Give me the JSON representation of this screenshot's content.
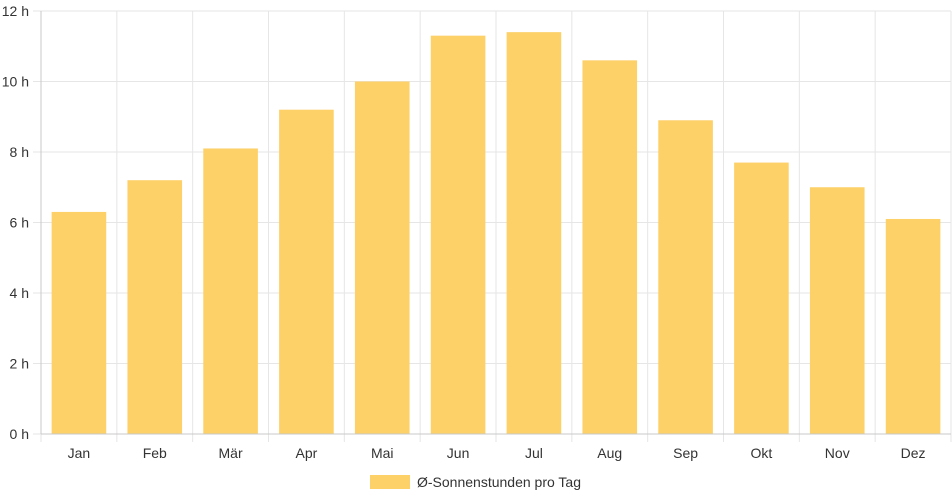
{
  "chart_data": {
    "type": "bar",
    "categories": [
      "Jan",
      "Feb",
      "Mär",
      "Apr",
      "Mai",
      "Jun",
      "Jul",
      "Aug",
      "Sep",
      "Okt",
      "Nov",
      "Dez"
    ],
    "series": [
      {
        "name": "Ø-Sonnenstunden pro Tag",
        "values": [
          6.3,
          7.2,
          8.1,
          9.2,
          10.0,
          11.3,
          11.4,
          10.6,
          8.9,
          7.7,
          7.0,
          6.1
        ],
        "color": "#fdd068"
      }
    ],
    "y_ticks": [
      "0 h",
      "2 h",
      "4 h",
      "6 h",
      "8 h",
      "10 h",
      "12 h"
    ],
    "ylim": [
      0,
      12
    ],
    "grid": true,
    "legend_position": "bottom",
    "gridline_color": "#e6e6e6",
    "axis_color": "#c8c8c8"
  }
}
